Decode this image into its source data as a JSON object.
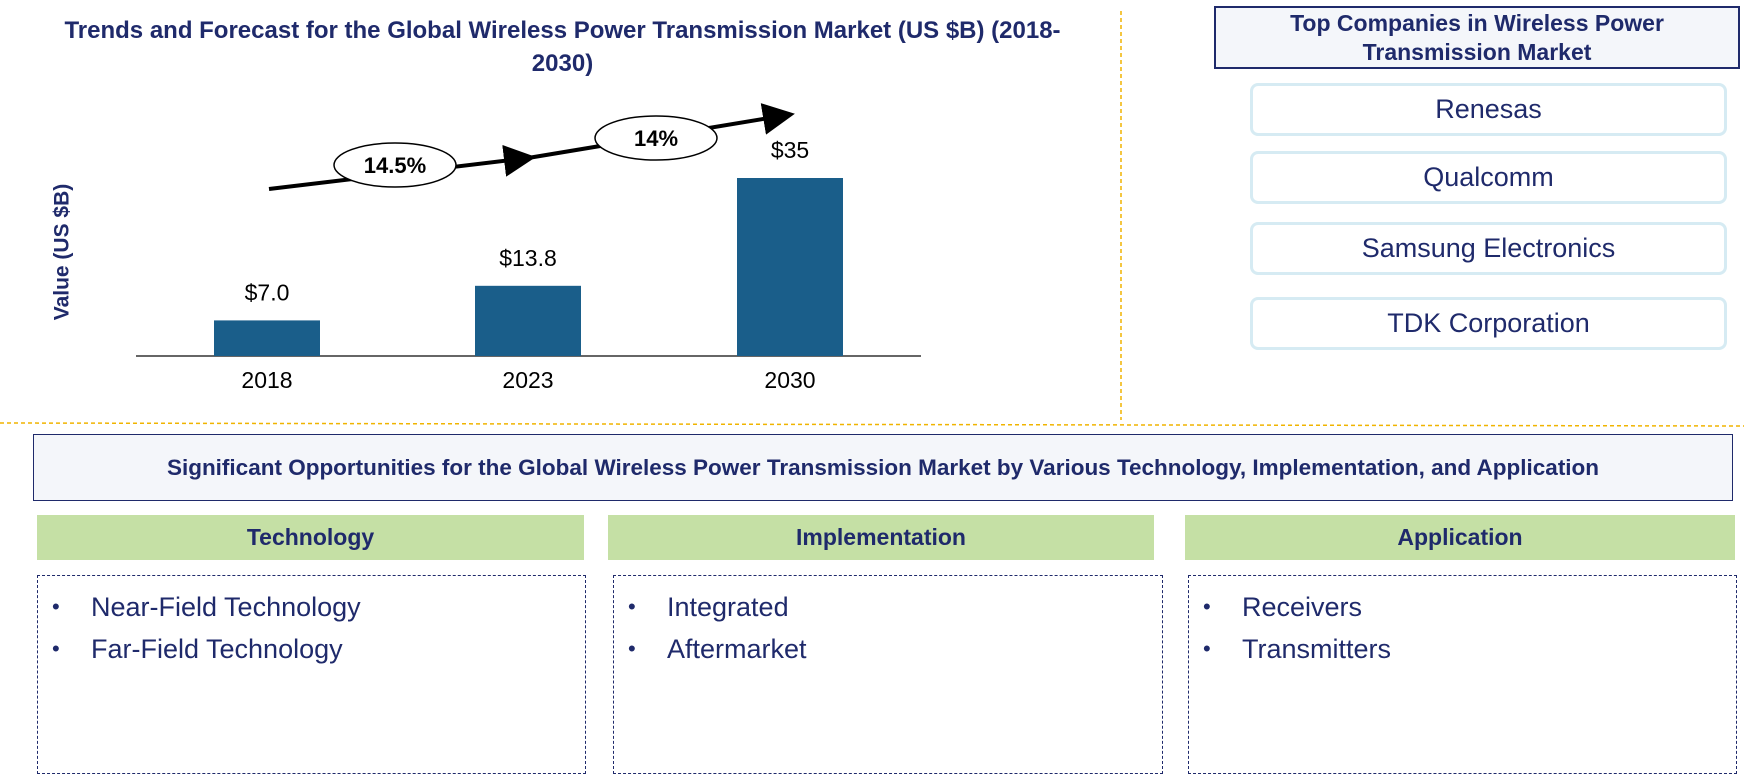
{
  "chart_data": {
    "type": "bar",
    "title": "Trends and Forecast for the Global Wireless Power Transmission Market (US $B) (2018-2030)",
    "y_label": "Value (US $B)",
    "categories": [
      "2018",
      "2023",
      "2030"
    ],
    "values": [
      7.0,
      13.8,
      35
    ],
    "value_labels": [
      "$7.0",
      "$13.8",
      "$35"
    ],
    "color": "#1a5e8a",
    "annotations": [
      "14.5%",
      "14%"
    ]
  },
  "companies": {
    "title": "Top Companies in Wireless Power Transmission Market",
    "items": [
      "Renesas",
      "Qualcomm",
      "Samsung Electronics",
      "TDK Corporation"
    ]
  },
  "opportunities": {
    "title": "Significant Opportunities for the Global Wireless Power Transmission Market by Various Technology, Implementation, and Application",
    "columns": [
      {
        "heading": "Technology",
        "items": [
          "Near-Field Technology",
          "Far-Field Technology"
        ]
      },
      {
        "heading": "Implementation",
        "items": [
          "Integrated",
          "Aftermarket"
        ]
      },
      {
        "heading": "Application",
        "items": [
          "Receivers",
          "Transmitters"
        ]
      }
    ]
  }
}
